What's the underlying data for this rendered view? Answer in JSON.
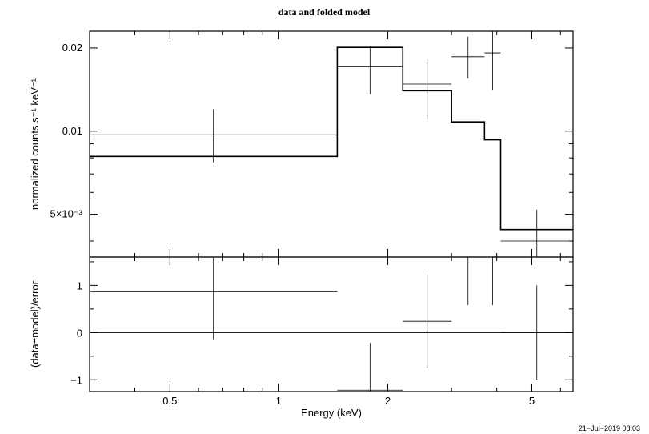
{
  "chart_data": [
    {
      "type": "line",
      "title": "data and folded model",
      "xlabel": "",
      "ylabel": "normalized counts s⁻¹ keV⁻¹",
      "xscale": "log",
      "yscale": "log",
      "xlim": [
        0.3,
        6.5
      ],
      "ylim": [
        0.0035,
        0.023
      ],
      "yticks": [
        {
          "value": 0.02,
          "label": "0.02"
        },
        {
          "value": 0.01,
          "label": "0.01"
        },
        {
          "value": 0.005,
          "label": "5×10⁻³"
        }
      ],
      "data": [
        {
          "xlo": 0.3,
          "xhi": 1.45,
          "y": 0.0097,
          "ylo": 0.0077,
          "yhi": 0.012
        },
        {
          "xlo": 1.45,
          "xhi": 2.2,
          "y": 0.0171,
          "ylo": 0.0136,
          "yhi": 0.0203
        },
        {
          "xlo": 2.2,
          "xhi": 3.0,
          "y": 0.0148,
          "ylo": 0.011,
          "yhi": 0.0182
        },
        {
          "xlo": 3.0,
          "xhi": 3.7,
          "y": 0.0186,
          "ylo": 0.0155,
          "yhi": 0.022
        },
        {
          "xlo": 3.7,
          "xhi": 4.1,
          "y": 0.0192,
          "ylo": 0.0141,
          "yhi": 0.0235
        },
        {
          "xlo": 4.1,
          "xhi": 6.5,
          "y": 0.004,
          "ylo": 0.003,
          "yhi": 0.0052
        }
      ],
      "model": [
        {
          "xlo": 0.3,
          "xhi": 1.45,
          "y": 0.0081
        },
        {
          "xlo": 1.45,
          "xhi": 2.2,
          "y": 0.0201
        },
        {
          "xlo": 2.2,
          "xhi": 3.0,
          "y": 0.014
        },
        {
          "xlo": 3.0,
          "xhi": 3.7,
          "y": 0.0108
        },
        {
          "xlo": 3.7,
          "xhi": 4.1,
          "y": 0.0093
        },
        {
          "xlo": 4.1,
          "xhi": 6.5,
          "y": 0.0044
        }
      ]
    },
    {
      "type": "line",
      "title": "",
      "xlabel": "Energy (keV)",
      "ylabel": "(data−model)/error",
      "xscale": "log",
      "yscale": "linear",
      "xlim": [
        0.3,
        6.5
      ],
      "ylim": [
        -1.25,
        1.6
      ],
      "xticks": [
        {
          "value": 0.5,
          "label": "0.5"
        },
        {
          "value": 1,
          "label": "1"
        },
        {
          "value": 2,
          "label": "2"
        },
        {
          "value": 5,
          "label": "5"
        }
      ],
      "yticks": [
        {
          "value": 1,
          "label": "1"
        },
        {
          "value": 0,
          "label": "0"
        },
        {
          "value": -1,
          "label": "−1"
        }
      ],
      "reference_line": 0,
      "residuals": [
        {
          "xlo": 0.3,
          "xhi": 1.45,
          "y": 0.86,
          "ylo": -0.14,
          "yhi": 1.86
        },
        {
          "xlo": 1.45,
          "xhi": 2.2,
          "y": -1.22,
          "ylo": -2.22,
          "yhi": -0.22
        },
        {
          "xlo": 2.2,
          "xhi": 3.0,
          "y": 0.24,
          "ylo": -0.76,
          "yhi": 1.24
        },
        {
          "xlo": 3.0,
          "xhi": 3.7,
          "y": 1.62,
          "ylo": 0.58,
          "yhi": 2.62
        },
        {
          "xlo": 3.7,
          "xhi": 4.1,
          "y": 1.62,
          "ylo": 0.58,
          "yhi": 2.62
        },
        {
          "xlo": 4.1,
          "xhi": 6.5,
          "y": 0.0,
          "ylo": -1.0,
          "yhi": 1.0
        }
      ]
    }
  ],
  "timestamp": "21−Jul−2019 08:03"
}
